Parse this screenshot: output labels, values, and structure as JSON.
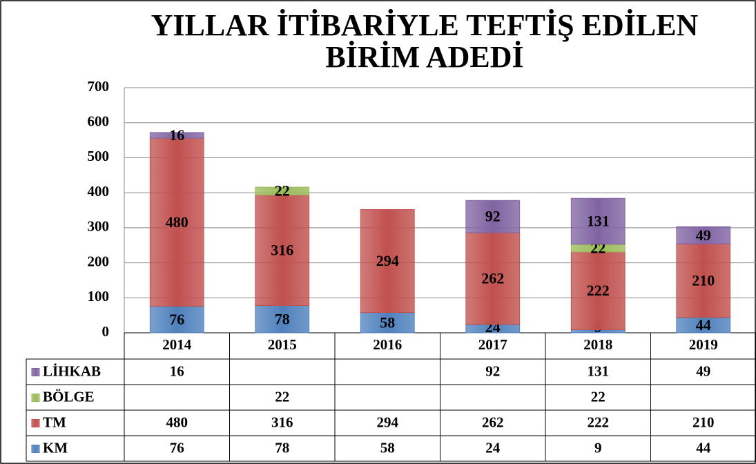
{
  "chart_data": {
    "type": "stacked_bar",
    "title": "YILLAR İTİBARİYLE TEFTİŞ EDİLEN BİRİM ADEDİ",
    "categories": [
      "2014",
      "2015",
      "2016",
      "2017",
      "2018",
      "2019"
    ],
    "series": [
      {
        "name": "KM",
        "color": "#4f81bd",
        "values": [
          76,
          78,
          58,
          24,
          9,
          44
        ]
      },
      {
        "name": "TM",
        "color": "#c0504d",
        "values": [
          480,
          316,
          294,
          262,
          222,
          210
        ]
      },
      {
        "name": "BÖLGE",
        "color": "#9bbb59",
        "values": [
          null,
          22,
          null,
          null,
          22,
          null
        ]
      },
      {
        "name": "LİHKAB",
        "color": "#8064a2",
        "values": [
          16,
          null,
          null,
          92,
          131,
          49
        ]
      }
    ],
    "ylim": [
      0,
      700
    ],
    "yticks": [
      0,
      100,
      200,
      300,
      400,
      500,
      600,
      700
    ],
    "grid": true
  }
}
